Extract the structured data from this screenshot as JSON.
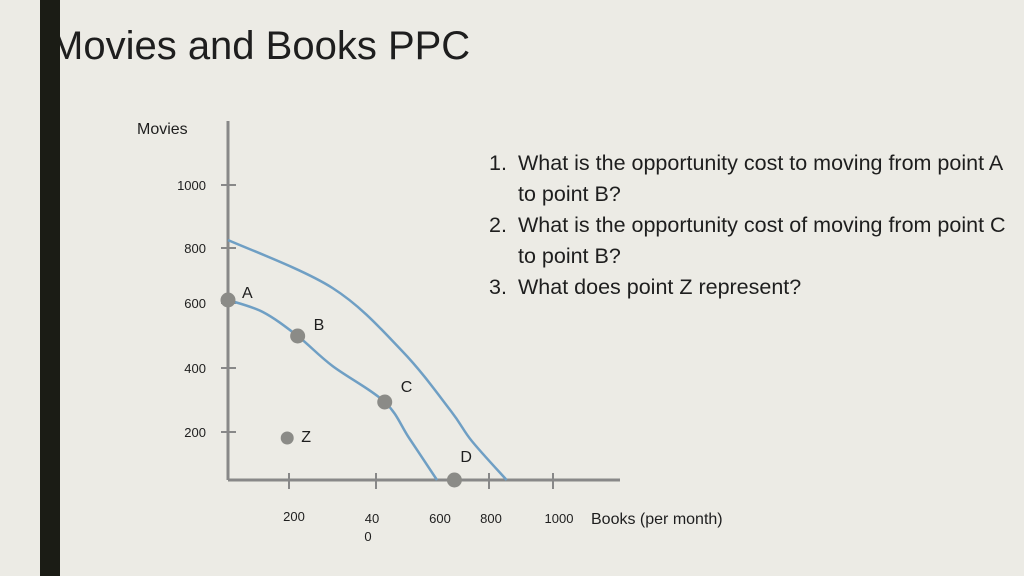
{
  "page": {
    "title": "Movies and Books PPC",
    "questions": [
      {
        "num": "1.",
        "text": "What is the opportunity cost to moving from point A to point B?"
      },
      {
        "num": "2.",
        "text": "What is the opportunity cost of moving from point C to point B?"
      },
      {
        "num": "3.",
        "text": "What does point Z represent?"
      }
    ]
  },
  "chart_data": {
    "type": "line",
    "title": "",
    "ylabel": "Movies",
    "xlabel": "Books (per month)",
    "xlim": [
      0,
      1050
    ],
    "ylim": [
      0,
      1100
    ],
    "y_ticks": [
      {
        "value": 1000,
        "label": "1000"
      },
      {
        "value": 800,
        "label": "800"
      },
      {
        "value": 600,
        "label": "600"
      },
      {
        "value": 400,
        "label": "400"
      },
      {
        "value": 200,
        "label": "200"
      }
    ],
    "x_ticks": [
      {
        "value": 200,
        "label": "200",
        "tick": true
      },
      {
        "value": 400,
        "label": "40\n0",
        "tick": true
      },
      {
        "value": 600,
        "label": "600",
        "tick": false
      },
      {
        "value": 800,
        "label": "800",
        "tick": true
      },
      {
        "value": 1000,
        "label": "1000",
        "tick": true
      }
    ],
    "series": [
      {
        "x": [
          0,
          300,
          500,
          640,
          700,
          800
        ],
        "y": [
          800,
          640,
          430,
          230,
          130,
          0
        ]
      },
      {
        "x": [
          0,
          100,
          200,
          300,
          450,
          520,
          600
        ],
        "y": [
          600,
          560,
          480,
          380,
          260,
          140,
          0
        ]
      }
    ],
    "points": [
      {
        "label": "A",
        "x": 0,
        "y": 600
      },
      {
        "label": "B",
        "x": 200,
        "y": 480
      },
      {
        "label": "C",
        "x": 450,
        "y": 260
      },
      {
        "label": "D",
        "x": 650,
        "y": 0
      },
      {
        "label": "Z",
        "x": 170,
        "y": 140
      }
    ],
    "grid": false,
    "legend": "none",
    "colors": {
      "curve": "#6f9fc4",
      "point": "#8b8b87",
      "axis": "#888888"
    }
  }
}
